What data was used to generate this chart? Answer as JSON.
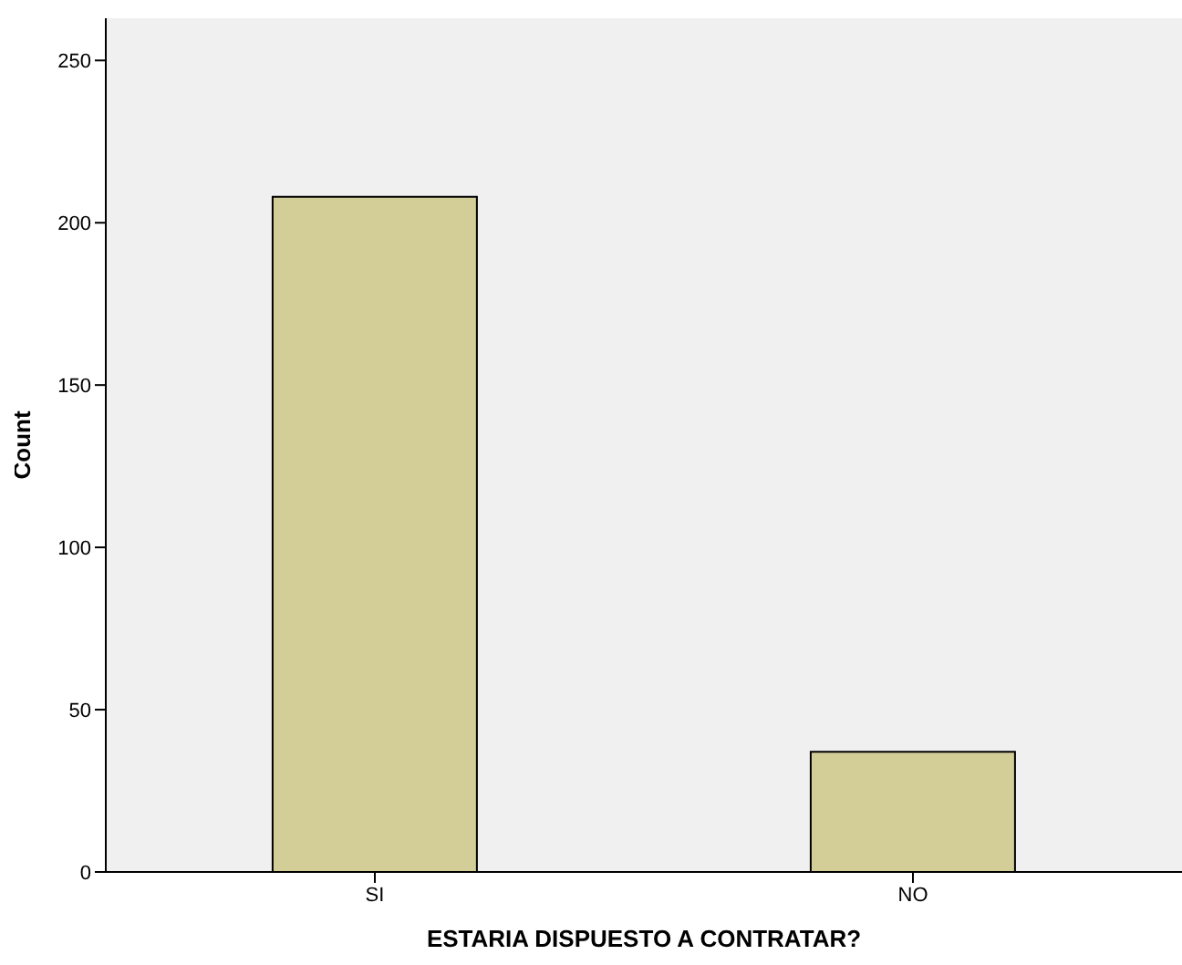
{
  "chart_data": {
    "type": "bar",
    "xlabel": "ESTARIA DISPUESTO A CONTRATAR?",
    "ylabel": "Count",
    "categories": [
      "SI",
      "NO"
    ],
    "values": [
      208,
      37
    ],
    "color": "#d3ce98",
    "ylim": [
      0,
      263
    ],
    "yticks": [
      0,
      50,
      100,
      150,
      200,
      250
    ]
  }
}
